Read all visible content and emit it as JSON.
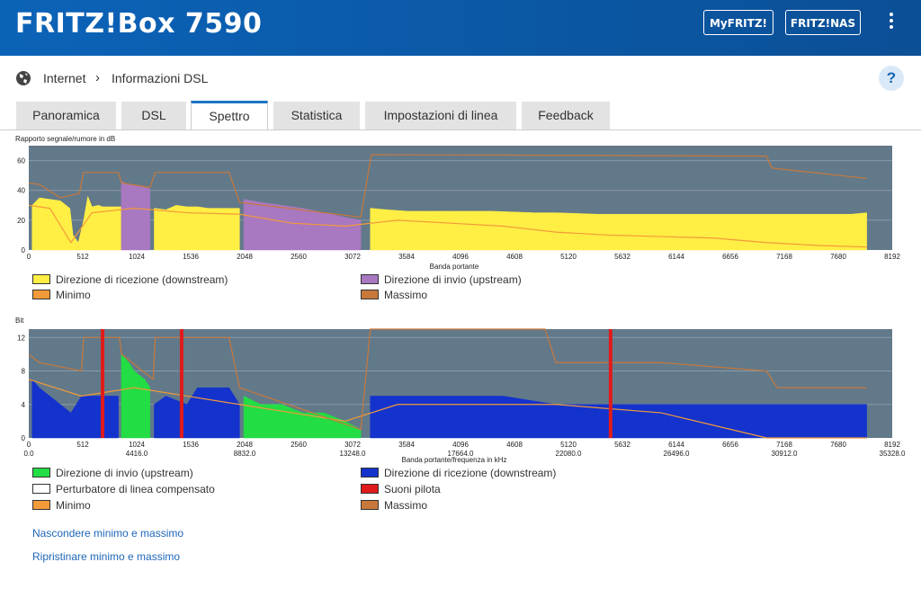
{
  "header": {
    "title": "FRITZ!Box 7590",
    "buttons": [
      "MyFRITZ!",
      "FRITZ!NAS"
    ],
    "menu_icon": "kebab-menu-icon"
  },
  "breadcrumb": {
    "items": [
      "Internet",
      "Informazioni DSL"
    ],
    "icon": "globe-icon"
  },
  "help_label": "?",
  "tabs": [
    {
      "label": "Panoramica",
      "active": false
    },
    {
      "label": "DSL",
      "active": false
    },
    {
      "label": "Spettro",
      "active": true
    },
    {
      "label": "Statistica",
      "active": false
    },
    {
      "label": "Impostazioni di linea",
      "active": false
    },
    {
      "label": "Feedback",
      "active": false
    }
  ],
  "snr_chart": {
    "ylabel": "Rapporto segnale/rumore in dB",
    "xlabel": "Banda portante",
    "yticks": [
      "60",
      "40",
      "20",
      "0"
    ],
    "xticks": [
      "0",
      "512",
      "1024",
      "1536",
      "2048",
      "2560",
      "3072",
      "3584",
      "4096",
      "4608",
      "5120",
      "5632",
      "6144",
      "6656",
      "7168",
      "7680",
      "8192"
    ],
    "legend": [
      {
        "label": "Direzione di ricezione  (downstream)",
        "color": "#ffee44"
      },
      {
        "label": "Direzione di invio  (upstream)",
        "color": "#a878c0"
      },
      {
        "label": "Minimo",
        "color": "#f39a3a"
      },
      {
        "label": "Massimo",
        "color": "#c8783a"
      }
    ]
  },
  "bit_chart": {
    "ylabel": "Bit",
    "xlabel": "Banda portante/frequenza in kHz",
    "yticks": [
      "12",
      "8",
      "4",
      "0"
    ],
    "xticks": [
      "0",
      "512",
      "1024",
      "1536",
      "2048",
      "2560",
      "3072",
      "3584",
      "4096",
      "4608",
      "5120",
      "5632",
      "6144",
      "6656",
      "7168",
      "7680",
      "8192"
    ],
    "freq_ticks": [
      "0.0",
      "4416.0",
      "8832.0",
      "13248.0",
      "17664.0",
      "22080.0",
      "26496.0",
      "30912.0",
      "35328.0"
    ],
    "legend": [
      {
        "label": "Direzione di invio  (upstream)",
        "color": "#22dd44"
      },
      {
        "label": "Direzione di ricezione  (downstream)",
        "color": "#1433cc"
      },
      {
        "label": "Perturbatore di linea compensato",
        "color": "#ffffff"
      },
      {
        "label": "Suoni pilota",
        "color": "#e01b1b"
      },
      {
        "label": "Minimo",
        "color": "#f39a3a"
      },
      {
        "label": "Massimo",
        "color": "#c8783a"
      }
    ]
  },
  "chart_data": [
    {
      "type": "area",
      "title": "",
      "ylabel": "Rapporto segnale/rumore in dB",
      "xlabel": "Banda portante",
      "xlim": [
        0,
        8192
      ],
      "ylim": [
        0,
        70
      ],
      "grid": true,
      "series": [
        {
          "name": "Direzione di ricezione  (downstream)",
          "segments": [
            {
              "x": [
                32,
                100,
                200,
                300,
                390,
                420,
                470,
                520,
                560,
                600,
                660,
                700,
                800,
                880
              ],
              "y": [
                30,
                35,
                34,
                33,
                28,
                10,
                5,
                20,
                36,
                29,
                30,
                29,
                29,
                29
              ]
            },
            {
              "x": [
                1190,
                1300,
                1400,
                1500,
                1600,
                1700,
                1800,
                1900,
                2000
              ],
              "y": [
                28,
                27,
                30,
                29,
                29,
                28,
                28,
                28,
                28
              ]
            },
            {
              "x": [
                3240,
                3400,
                3600,
                3800,
                4000,
                4400,
                4800,
                5000,
                5400,
                6000,
                6600,
                7000,
                7400,
                7800,
                7950
              ],
              "y": [
                28,
                27,
                26,
                26,
                26,
                26,
                25,
                25,
                24,
                24,
                24,
                24,
                24,
                24,
                25
              ]
            }
          ]
        },
        {
          "name": "Direzione di invio  (upstream)",
          "segments": [
            {
              "x": [
                878,
                950,
                1050,
                1100,
                1150
              ],
              "y": [
                46,
                44,
                43,
                42,
                41
              ]
            },
            {
              "x": [
                2040,
                2200,
                2400,
                2600,
                2800,
                3000,
                3150
              ],
              "y": [
                34,
                32,
                30,
                28,
                25,
                22,
                20
              ]
            }
          ]
        },
        {
          "name": "Minimo",
          "x": [
            0,
            200,
            400,
            600,
            1000,
            1500,
            2000,
            2500,
            3000,
            3500,
            4000,
            4500,
            5000,
            5500,
            6000,
            6500,
            7000,
            7500,
            7950
          ],
          "y": [
            30,
            28,
            5,
            25,
            28,
            25,
            24,
            18,
            16,
            20,
            18,
            16,
            12,
            10,
            9,
            8,
            5,
            3,
            2
          ]
        },
        {
          "name": "Massimo",
          "x": [
            0,
            100,
            300,
            480,
            520,
            850,
            880,
            1150,
            1200,
            1900,
            2000,
            3150,
            3250,
            7000,
            7050,
            7950
          ],
          "y": [
            45,
            44,
            35,
            38,
            52,
            52,
            45,
            42,
            52,
            52,
            32,
            22,
            64,
            63,
            55,
            48
          ]
        }
      ]
    },
    {
      "type": "area",
      "title": "",
      "ylabel": "Bit",
      "xlabel": "Banda portante/frequenza in kHz",
      "xlim": [
        0,
        8192
      ],
      "ylim": [
        0,
        13
      ],
      "grid": true,
      "series": [
        {
          "name": "Direzione di invio  (upstream)",
          "segments": [
            {
              "x": [
                878,
                950,
                1000,
                1100,
                1150
              ],
              "y": [
                10,
                9,
                8,
                7,
                6
              ]
            },
            {
              "x": [
                2040,
                2200,
                2400,
                2600,
                2800,
                3000,
                3150
              ],
              "y": [
                5,
                4,
                4,
                3,
                3,
                2,
                1
              ]
            }
          ]
        },
        {
          "name": "Direzione di ricezione  (downstream)",
          "segments": [
            {
              "x": [
                32,
                100,
                200,
                300,
                400,
                500,
                600,
                700,
                850
              ],
              "y": [
                7,
                6,
                5,
                4,
                3,
                5,
                5,
                5,
                5
              ]
            },
            {
              "x": [
                1190,
                1300,
                1500,
                1600,
                1700,
                1900,
                2000
              ],
              "y": [
                4,
                5,
                4,
                6,
                6,
                6,
                4
              ]
            },
            {
              "x": [
                3240,
                3600,
                4000,
                4500,
                5000,
                5500,
                6000,
                6500,
                7000,
                7500,
                7950
              ],
              "y": [
                5,
                5,
                5,
                5,
                4,
                4,
                4,
                4,
                4,
                4,
                4
              ]
            }
          ]
        },
        {
          "name": "Minimo",
          "x": [
            0,
            500,
            1000,
            1500,
            2000,
            2500,
            3000,
            3500,
            4000,
            5000,
            6000,
            7000,
            7950
          ],
          "y": [
            7,
            5,
            6,
            5,
            4,
            3,
            2,
            4,
            4,
            4,
            3,
            0,
            0
          ]
        },
        {
          "name": "Massimo",
          "x": [
            0,
            100,
            500,
            520,
            860,
            880,
            1180,
            1200,
            1900,
            2000,
            3150,
            3240,
            3500,
            4900,
            5000,
            6000,
            7000,
            7100,
            7950
          ],
          "y": [
            10,
            9,
            8,
            12,
            12,
            10,
            7,
            12,
            12,
            6,
            1,
            13,
            13,
            13,
            9,
            9,
            8,
            6,
            6
          ]
        },
        {
          "name": "Suoni pilota",
          "x": [
            700,
            1450,
            5520
          ],
          "y": [
            13,
            13,
            13
          ]
        }
      ]
    }
  ],
  "links": [
    "Nascondere minimo e massimo",
    "Ripristinare minimo e massimo"
  ]
}
